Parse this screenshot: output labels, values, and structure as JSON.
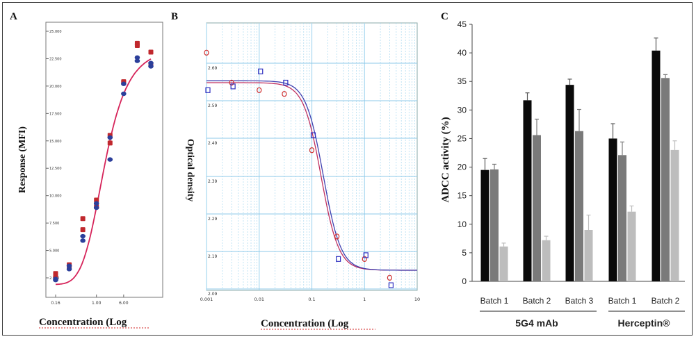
{
  "panels": [
    {
      "label": "A",
      "type": "scatter",
      "xlabel": "Concentration (Log",
      "ylabel": "Response (MFI)",
      "x_tick_labels": [
        "0.16",
        "1.00",
        "6.00"
      ],
      "y_tick_labels": [
        "2.500",
        "5.000",
        "7.500",
        "10.000",
        "12.500",
        "15.000",
        "17.500",
        "20.000",
        "22.500",
        "25.000"
      ],
      "ylim": [
        2.5,
        25
      ],
      "colors": {
        "series_red": "#c0282d",
        "series_blue": "#2c3f9a",
        "curve": "#d6245a"
      }
    },
    {
      "label": "B",
      "type": "scatter",
      "xlabel": "Concentration (Log",
      "ylabel": "Optical density",
      "xscale": "log",
      "xlim": [
        0.001,
        10
      ],
      "x_tick_labels": [
        "0.001",
        "0.01",
        "0.1",
        "1",
        "10"
      ],
      "y_tick_labels": [
        "2.09",
        "2.19",
        "2.29",
        "2.39",
        "2.49",
        "2.59",
        "2.69"
      ],
      "colors": {
        "series_red": "#d03030",
        "series_blue": "#3030c0",
        "grid": "#a8d8f0"
      }
    },
    {
      "label": "C",
      "type": "bar",
      "ylabel": "ADCC activity (%)",
      "ylim": [
        0,
        45
      ],
      "y_tick_labels": [
        "0",
        "5",
        "10",
        "15",
        "20",
        "25",
        "30",
        "35",
        "40",
        "45"
      ],
      "categories": [
        "Batch 1",
        "Batch 2",
        "Batch 3",
        "Batch 1",
        "Batch 2"
      ],
      "groups": [
        {
          "name": "5G4 mAb",
          "span": [
            0,
            2
          ]
        },
        {
          "name": "Herceptin®",
          "span": [
            3,
            4
          ]
        }
      ],
      "series_colors": [
        "#0a0a0a",
        "#7a7a7a",
        "#bdbdbd"
      ],
      "values": [
        [
          19.5,
          19.6,
          6.1
        ],
        [
          31.7,
          25.6,
          7.2
        ],
        [
          34.4,
          26.3,
          9.0
        ],
        [
          25.0,
          22.1,
          12.2
        ],
        [
          40.4,
          35.6,
          23.0
        ]
      ],
      "errors": [
        [
          2.0,
          0.9,
          0.6
        ],
        [
          1.3,
          2.8,
          0.7
        ],
        [
          1.0,
          3.8,
          2.6
        ],
        [
          2.6,
          2.3,
          1.0
        ],
        [
          2.2,
          0.6,
          1.6
        ]
      ]
    }
  ],
  "chart_data": [
    {
      "type": "scatter",
      "title": "A",
      "xlabel": "Concentration (Log",
      "ylabel": "Response (MFI)",
      "ylim": [
        2.5,
        25
      ],
      "x_index": [
        1,
        2,
        3,
        4,
        5,
        6,
        7,
        8
      ],
      "series": [
        {
          "values": [
            2.9,
            3.7,
            7.9,
            9.6,
            15.5,
            20.4,
            23.9,
            23.1
          ]
        },
        {
          "values": [
            2.6,
            3.5,
            6.9,
            9.0,
            14.8,
            20.3,
            23.7,
            22.0
          ]
        },
        {
          "values": [
            2.3,
            3.3,
            6.3,
            8.9,
            13.3,
            19.3,
            22.6,
            21.8
          ]
        },
        {
          "values": [
            2.4,
            3.6,
            5.9,
            9.3,
            15.3,
            20.2,
            22.3,
            22.1
          ]
        }
      ],
      "fit": {
        "bottom": 1.9,
        "top": 23.6,
        "mid_index": 4.6,
        "slope": 1.25
      }
    },
    {
      "type": "scatter",
      "title": "B",
      "xlabel": "Concentration (Log",
      "ylabel": "Optical density",
      "xscale": "log",
      "xlim": [
        0.001,
        10
      ],
      "ylim": [
        2.09,
        2.72
      ],
      "series": [
        {
          "x": [
            0.001,
            0.003,
            0.01,
            0.03,
            0.1,
            0.3,
            1,
            3
          ],
          "values": [
            2.72,
            2.64,
            2.62,
            2.61,
            2.46,
            2.23,
            2.17,
            2.12
          ]
        },
        {
          "x": [
            0.001,
            0.003,
            0.01,
            0.03,
            0.1,
            0.3,
            1,
            3
          ],
          "values": [
            2.62,
            2.63,
            2.67,
            2.64,
            2.5,
            2.17,
            2.18,
            2.1
          ]
        }
      ]
    },
    {
      "type": "bar",
      "title": "C",
      "ylabel": "ADCC activity (%)",
      "ylim": [
        0,
        45
      ],
      "categories": [
        "Batch 1",
        "Batch 2",
        "Batch 3",
        "Batch 1",
        "Batch 2"
      ],
      "groups": [
        "5G4 mAb",
        "Herceptin®"
      ],
      "series": [
        {
          "values": [
            19.5,
            31.7,
            34.4,
            25.0,
            40.4
          ],
          "errors": [
            2.0,
            1.3,
            1.0,
            2.6,
            2.2
          ]
        },
        {
          "values": [
            19.6,
            25.6,
            26.3,
            22.1,
            35.6
          ],
          "errors": [
            0.9,
            2.8,
            3.8,
            2.3,
            0.6
          ]
        },
        {
          "values": [
            6.1,
            7.2,
            9.0,
            12.2,
            23.0
          ],
          "errors": [
            0.6,
            0.7,
            2.6,
            1.0,
            1.6
          ]
        }
      ]
    }
  ]
}
